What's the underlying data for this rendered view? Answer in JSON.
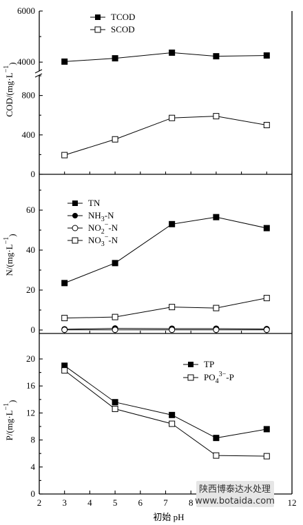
{
  "figure": {
    "x_axis_label": "初始 pH"
  },
  "watermark": {
    "line1": "陕西博泰达水处理",
    "line2": "www.botaida.com"
  },
  "chart_data": [
    {
      "type": "line",
      "panel": "COD",
      "ylabel": "COD/(mg·L⁻¹)",
      "ylabel_parts": {
        "base": "COD/(mg·L",
        "sup": "−1",
        "close": ")"
      },
      "y_axis": "broken",
      "ylim_lower": [
        0,
        1000
      ],
      "ylim_upper": [
        3600,
        6000
      ],
      "ytick_labels": [
        "0",
        "400",
        "800",
        "4000",
        "6000"
      ],
      "legend_position": "top-left",
      "x": [
        3,
        5,
        7.25,
        9,
        11
      ],
      "series": [
        {
          "name": "TCOD",
          "marker": "square-filled",
          "values": [
            4020,
            4150,
            4370,
            4230,
            4260
          ]
        },
        {
          "name": "SCOD",
          "marker": "square-open",
          "values": [
            195,
            355,
            572,
            590,
            500
          ]
        }
      ]
    },
    {
      "type": "line",
      "panel": "N",
      "ylabel": "N/(mg·L⁻¹)",
      "ylabel_parts": {
        "base": "N/(mg·L",
        "sup": "−1",
        "close": ")"
      },
      "ylim": [
        0,
        80
      ],
      "ytick_labels": [
        "0",
        "20",
        "40",
        "60"
      ],
      "legend_position": "left",
      "x": [
        3,
        5,
        7.25,
        9,
        11
      ],
      "series": [
        {
          "name": "TN",
          "label_parts": {
            "base": "TN"
          },
          "marker": "square-filled",
          "values": [
            23.5,
            33.5,
            53,
            56.5,
            51
          ]
        },
        {
          "name": "NH₃-N",
          "label_parts": {
            "base": "NH",
            "sub": "3",
            "after": "-N"
          },
          "marker": "circle-filled",
          "values": [
            0.4,
            0.8,
            0.7,
            0.7,
            0.5
          ]
        },
        {
          "name": "NO₂⁻-N",
          "label_parts": {
            "base": "NO",
            "sub": "2",
            "sup": "−",
            "after": "-N"
          },
          "marker": "circle-open",
          "values": [
            0.1,
            0.1,
            0.1,
            0.1,
            0.1
          ]
        },
        {
          "name": "NO₃⁻-N",
          "label_parts": {
            "base": "NO",
            "sub": "3",
            "sup": "−",
            "after": "-N"
          },
          "marker": "square-open",
          "values": [
            6,
            6.5,
            11.5,
            11,
            16
          ]
        }
      ]
    },
    {
      "type": "line",
      "panel": "P",
      "ylabel": "P/(mg·L⁻¹)",
      "ylabel_parts": {
        "base": "P/(mg·L",
        "sup": "−1",
        "close": ")"
      },
      "xlabel": "初始 pH",
      "xlim": [
        2,
        12
      ],
      "xtick_labels": [
        "2",
        "3",
        "4",
        "5",
        "6",
        "7",
        "8",
        "9",
        "10",
        "11",
        "12"
      ],
      "ylim": [
        0,
        22
      ],
      "ytick_labels": [
        "0",
        "4",
        "8",
        "12",
        "16",
        "20"
      ],
      "legend_position": "top-right",
      "x": [
        3,
        5,
        7.25,
        9,
        11
      ],
      "series": [
        {
          "name": "TP",
          "label_parts": {
            "base": "TP"
          },
          "marker": "square-filled",
          "values": [
            19.0,
            13.6,
            11.7,
            8.3,
            9.6
          ]
        },
        {
          "name": "PO₄³⁻-P",
          "label_parts": {
            "base": "PO",
            "sub": "4",
            "sup": "3−",
            "after": "-P"
          },
          "marker": "square-open",
          "values": [
            18.3,
            12.6,
            10.4,
            5.7,
            5.6
          ]
        }
      ]
    }
  ]
}
